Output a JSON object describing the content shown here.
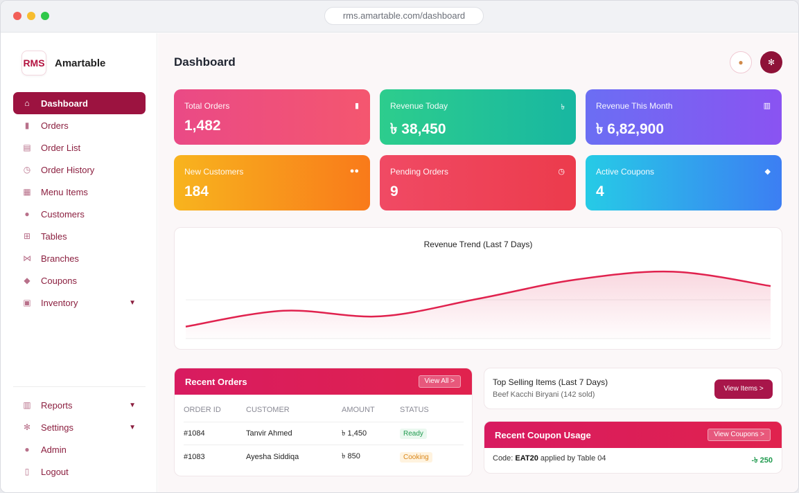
{
  "browser": {
    "url": "rms.amartable.com/dashboard"
  },
  "brand": {
    "logo": "RMS",
    "name": "Amartable"
  },
  "nav": [
    {
      "label": "Dashboard",
      "icon": "home-icon",
      "glyph": "⌂",
      "active": true
    },
    {
      "label": "Orders",
      "icon": "shopping-bag-icon",
      "glyph": "▮"
    },
    {
      "label": "Order List",
      "icon": "clipboard-icon",
      "glyph": "▤"
    },
    {
      "label": "Order History",
      "icon": "clock-icon",
      "glyph": "◷"
    },
    {
      "label": "Menu Items",
      "icon": "menu-icon",
      "glyph": "▦"
    },
    {
      "label": "Customers",
      "icon": "users-icon",
      "glyph": "●"
    },
    {
      "label": "Tables",
      "icon": "table-grid-icon",
      "glyph": "⊞"
    },
    {
      "label": "Branches",
      "icon": "branch-icon",
      "glyph": "⋈"
    },
    {
      "label": "Coupons",
      "icon": "tag-icon",
      "glyph": "◆"
    },
    {
      "label": "Inventory",
      "icon": "box-icon",
      "glyph": "▣",
      "caret": "▼"
    }
  ],
  "nav_bottom": [
    {
      "label": "Reports",
      "icon": "bar-chart-icon",
      "glyph": "▥",
      "caret": "▼"
    },
    {
      "label": "Settings",
      "icon": "gear-icon",
      "glyph": "✻",
      "caret": "▼"
    },
    {
      "label": "Admin",
      "icon": "user-icon",
      "glyph": "●"
    },
    {
      "label": "Logout",
      "icon": "logout-icon",
      "glyph": "▯"
    }
  ],
  "header": {
    "title": "Dashboard"
  },
  "stats": {
    "total_orders": {
      "label": "Total Orders",
      "value": "1,482"
    },
    "revenue_today": {
      "label": "Revenue Today",
      "value": "৳ 38,450"
    },
    "revenue_month": {
      "label": "Revenue This Month",
      "value": "৳ 6,82,900"
    },
    "new_customers": {
      "label": "New Customers",
      "value": "184"
    },
    "pending_orders": {
      "label": "Pending Orders",
      "value": "9"
    },
    "active_coupons": {
      "label": "Active Coupons",
      "value": "4"
    }
  },
  "chart": {
    "title": "Revenue Trend (Last 7 Days)"
  },
  "chart_data": {
    "type": "area",
    "title": "Revenue Trend (Last 7 Days)",
    "values": [
      0.15,
      0.35,
      0.28,
      0.5,
      0.74,
      0.84,
      0.66
    ],
    "color": "#e0224e",
    "grid": true
  },
  "recent_orders": {
    "title": "Recent Orders",
    "view_all": "View All >",
    "columns": [
      "ORDER ID",
      "CUSTOMER",
      "AMOUNT",
      "STATUS"
    ],
    "rows": [
      {
        "id": "#1084",
        "customer": "Tanvir Ahmed",
        "amount": "৳ 1,450",
        "status": "Ready"
      },
      {
        "id": "#1083",
        "customer": "Ayesha Siddiqa",
        "amount": "৳ 850",
        "status": "Cooking"
      }
    ]
  },
  "top_selling": {
    "title": "Top Selling Items (Last 7 Days)",
    "subtitle": "Beef Kacchi Biryani (142 sold)",
    "button": "View Items >"
  },
  "coupon_usage": {
    "title": "Recent Coupon Usage",
    "button": "View Coupons >",
    "prefix": "Code:",
    "code": "EAT20",
    "suffix": "applied by Table 04",
    "amount": "-৳ 250"
  }
}
